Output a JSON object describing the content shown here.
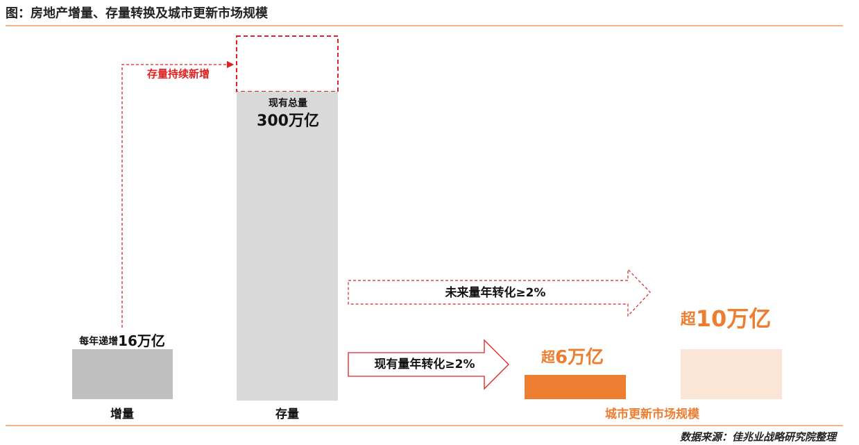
{
  "header": {
    "title": "图：房地产增量、存量转换及城市更新市场规模"
  },
  "annotations": {
    "stock_growth": "存量持续新增",
    "future_conversion": "未来量年转化≥2%",
    "current_conversion": "现有量年转化≥2%"
  },
  "bars": [
    {
      "label": "增量",
      "caption_prefix": "每年递增",
      "caption_value": "16万亿"
    },
    {
      "label": "存量",
      "caption_prefix": "现有总量",
      "caption_value": "300万亿"
    },
    {
      "caption_prefix": "超",
      "caption_value": "6万亿"
    },
    {
      "caption_prefix": "超",
      "caption_value": "10万亿"
    }
  ],
  "group_label": "城市更新市场规模",
  "footer": {
    "source": "数据来源：佳兆业战略研究院整理"
  }
}
